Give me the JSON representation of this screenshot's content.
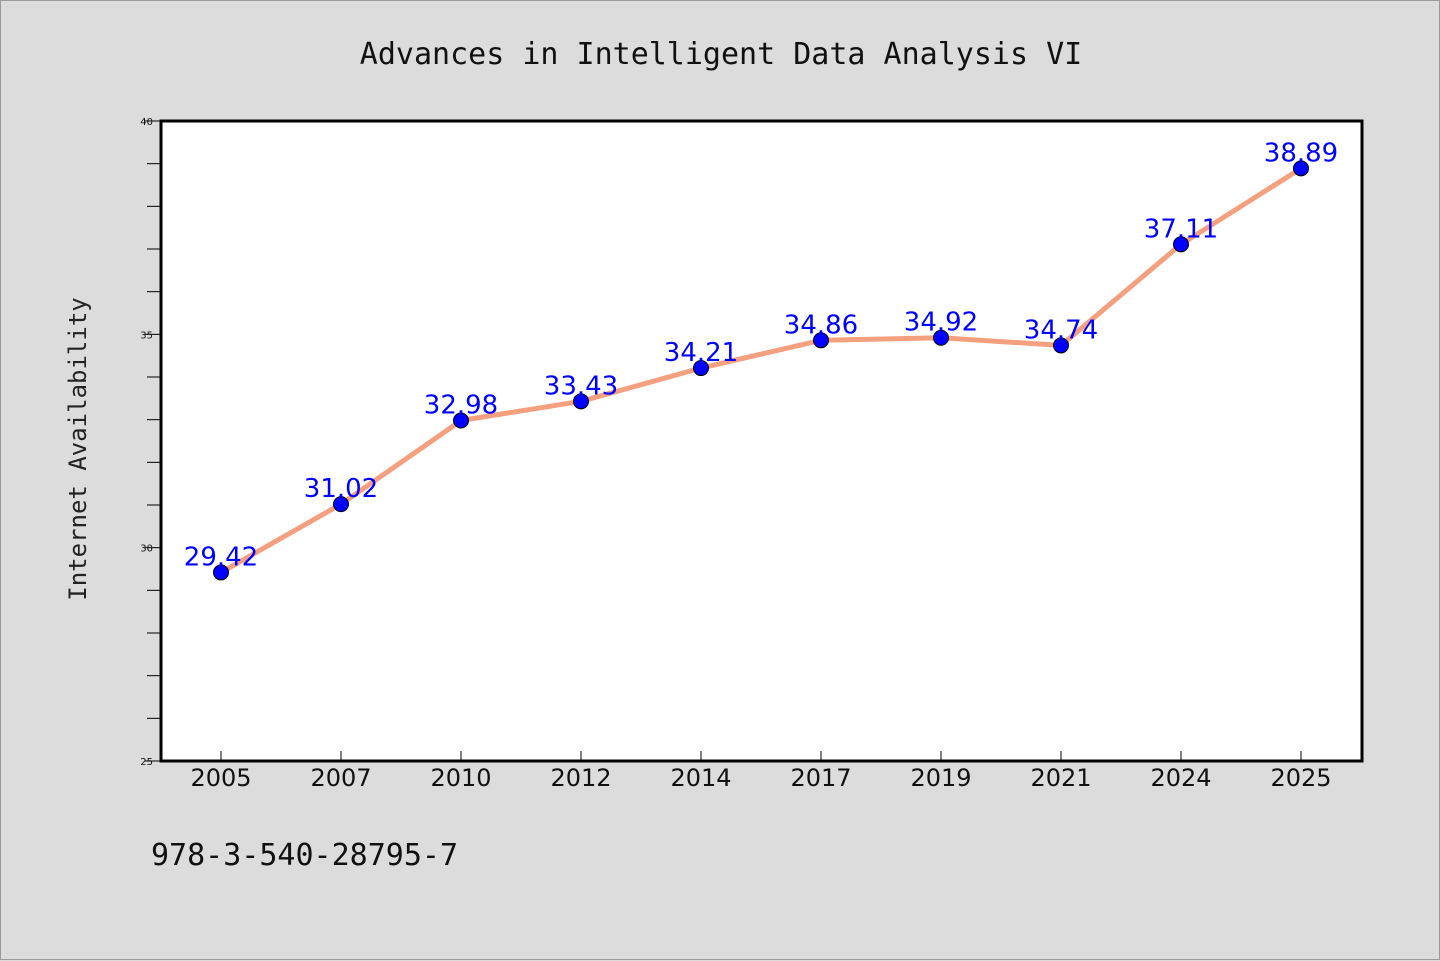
{
  "chart_data": {
    "type": "line",
    "title": "Advances in Intelligent Data Analysis VI",
    "xlabel": "",
    "ylabel": "Internet Availability",
    "categories": [
      "2005",
      "2007",
      "2010",
      "2012",
      "2014",
      "2017",
      "2019",
      "2021",
      "2024",
      "2025"
    ],
    "values": [
      29.42,
      31.02,
      32.98,
      33.43,
      34.21,
      34.86,
      34.92,
      34.74,
      37.11,
      38.89
    ],
    "data_labels": [
      "29.42",
      "31.02",
      "32.98",
      "33.43",
      "34.21",
      "34.86",
      "34.92",
      "34.74",
      "37.11",
      "38.89"
    ],
    "ylim": [
      25,
      40
    ],
    "y_ticks": [
      "25",
      "30",
      "35",
      "40"
    ],
    "y_minor_step": 1,
    "grid": false,
    "legend": "none",
    "line_color": "#f4a07f",
    "marker_color": "#0000ff",
    "label_color": "#0000ff"
  },
  "footer": {
    "text": "978-3-540-28795-7"
  }
}
